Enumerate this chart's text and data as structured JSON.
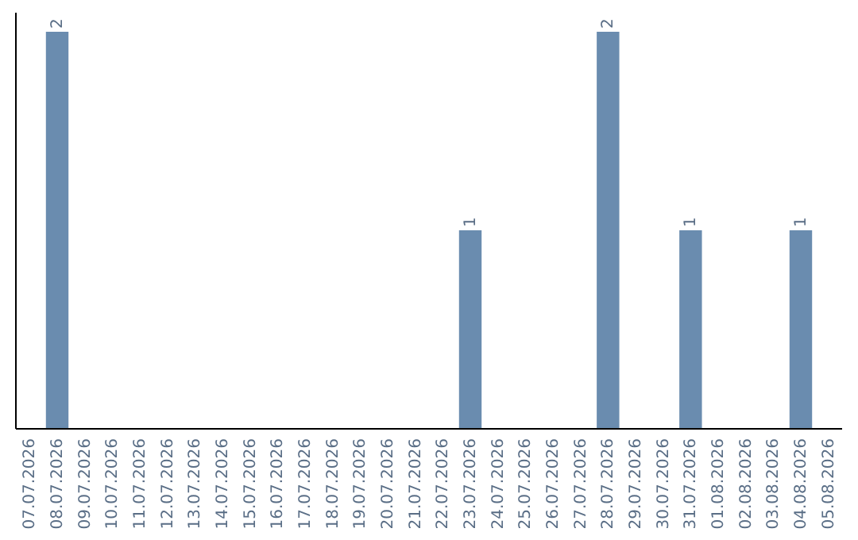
{
  "chart_data": {
    "type": "bar",
    "categories": [
      "07.07.2026",
      "08.07.2026",
      "09.07.2026",
      "10.07.2026",
      "11.07.2026",
      "12.07.2026",
      "13.07.2026",
      "14.07.2026",
      "15.07.2026",
      "16.07.2026",
      "17.07.2026",
      "18.07.2026",
      "19.07.2026",
      "20.07.2026",
      "21.07.2026",
      "22.07.2026",
      "23.07.2026",
      "24.07.2026",
      "25.07.2026",
      "26.07.2026",
      "27.07.2026",
      "28.07.2026",
      "29.07.2026",
      "30.07.2026",
      "31.07.2026",
      "01.08.2026",
      "02.08.2026",
      "03.08.2026",
      "04.08.2026",
      "05.08.2026"
    ],
    "values": [
      0,
      2,
      0,
      0,
      0,
      0,
      0,
      0,
      0,
      0,
      0,
      0,
      0,
      0,
      0,
      0,
      1,
      0,
      0,
      0,
      0,
      2,
      0,
      0,
      1,
      0,
      0,
      0,
      1,
      0
    ],
    "value_labels": [
      null,
      "2",
      null,
      null,
      null,
      null,
      null,
      null,
      null,
      null,
      null,
      null,
      null,
      null,
      null,
      null,
      "1",
      null,
      null,
      null,
      null,
      "2",
      null,
      null,
      "1",
      null,
      null,
      null,
      "1",
      null
    ],
    "color": "#6a8caf"
  }
}
